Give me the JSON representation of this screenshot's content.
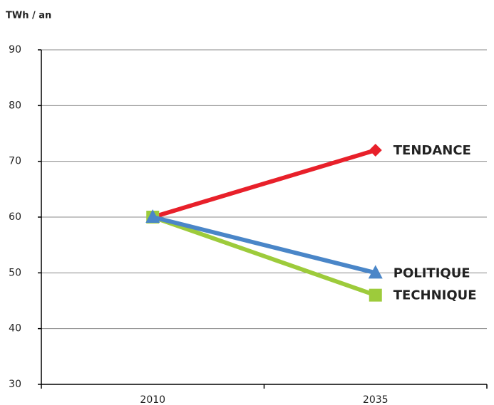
{
  "chart_data": {
    "type": "line",
    "y_label": "TWh / an",
    "categories": [
      "2010",
      "2035"
    ],
    "series": [
      {
        "name": "TENDANCE",
        "color": "#e8202a",
        "marker": "diamond",
        "values": [
          60,
          72
        ]
      },
      {
        "name": "TECHNIQUE",
        "color": "#9dcb3b",
        "marker": "square",
        "values": [
          60,
          46
        ]
      },
      {
        "name": "POLITIQUE",
        "color": "#4a86c8",
        "marker": "triangle",
        "values": [
          60,
          50
        ]
      }
    ],
    "ylim": [
      30,
      90
    ],
    "yticks": [
      30,
      40,
      50,
      60,
      70,
      80,
      90
    ],
    "grid": true
  }
}
